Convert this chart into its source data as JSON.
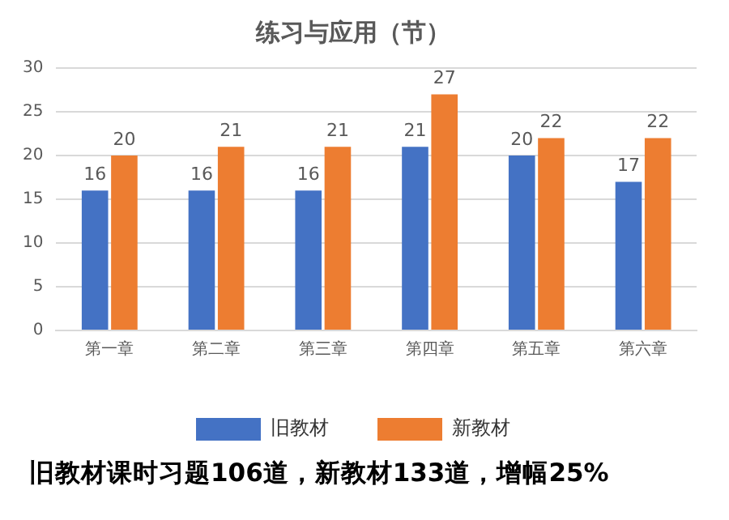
{
  "chart_data": {
    "type": "bar",
    "title": "练习与应用（节）",
    "categories": [
      "第一章",
      "第二章",
      "第三章",
      "第四章",
      "第五章",
      "第六章"
    ],
    "series": [
      {
        "name": "旧教材",
        "color": "#4472c4",
        "values": [
          16,
          16,
          16,
          21,
          20,
          17
        ]
      },
      {
        "name": "新教材",
        "color": "#ed7d31",
        "values": [
          20,
          21,
          21,
          27,
          22,
          22
        ]
      }
    ],
    "ylim": [
      0,
      30
    ],
    "yticks": [
      0,
      5,
      10,
      15,
      20,
      25,
      30
    ],
    "grid": "y",
    "legend": "bottom",
    "data_labels": true,
    "annotations": [
      "旧教材课时习题106道，新教材133道，增幅25%"
    ]
  }
}
